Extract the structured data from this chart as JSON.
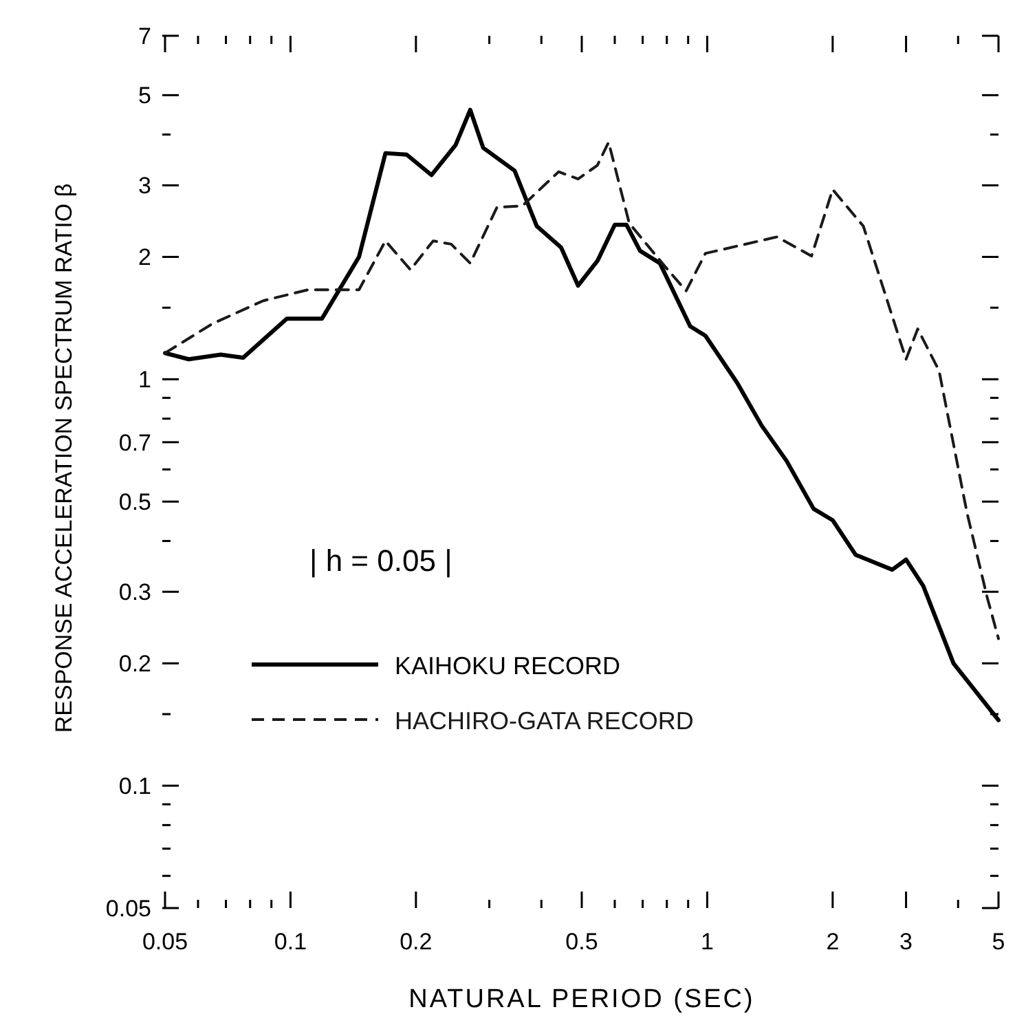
{
  "chart_data": {
    "type": "line",
    "xlabel": "NATURAL PERIOD (SEC)",
    "ylabel": "RESPONSE ACCELERATION SPECTRUM RATIO β",
    "log": "xy",
    "grid": false,
    "legend": "bottom left",
    "annotations": [
      "| h = 0.05 |"
    ],
    "xlim": [
      0.05,
      5
    ],
    "ylim": [
      0.05,
      7
    ],
    "xticks": [
      0.05,
      {
        "value": 0.06,
        "label": null
      },
      {
        "value": 0.07,
        "label": null
      },
      {
        "value": 0.08,
        "label": null
      },
      {
        "value": 0.09,
        "label": null
      },
      0.1,
      0.2,
      {
        "value": 0.3,
        "label": null
      },
      {
        "value": 0.4,
        "label": null
      },
      0.5,
      {
        "value": 0.6,
        "label": null
      },
      {
        "value": 0.7,
        "label": null
      },
      {
        "value": 0.8,
        "label": null
      },
      {
        "value": 0.9,
        "label": null
      },
      1,
      2,
      3,
      {
        "value": 4,
        "label": null
      },
      5
    ],
    "yticks": [
      0.05,
      {
        "value": 0.06,
        "label": null
      },
      {
        "value": 0.07,
        "label": null
      },
      {
        "value": 0.08,
        "label": null
      },
      {
        "value": 0.09,
        "label": null
      },
      0.1,
      {
        "value": 0.15,
        "label": null
      },
      0.2,
      0.3,
      {
        "value": 0.4,
        "label": null
      },
      0.5,
      {
        "value": 0.6,
        "label": null
      },
      0.7,
      {
        "value": 0.8,
        "label": null
      },
      {
        "value": 0.9,
        "label": null
      },
      1,
      {
        "value": 1.5,
        "label": null
      },
      2,
      3,
      {
        "value": 4,
        "label": null
      },
      5,
      7
    ],
    "series": [
      {
        "name": "KAIHOKU RECORD",
        "color": "#000000",
        "line_style": "solid",
        "x": [
          0.05,
          0.057,
          0.068,
          0.077,
          0.098,
          0.119,
          0.146,
          0.169,
          0.19,
          0.218,
          0.249,
          0.27,
          0.29,
          0.345,
          0.39,
          0.446,
          0.49,
          0.546,
          0.6,
          0.64,
          0.69,
          0.77,
          0.91,
          0.99,
          1.18,
          1.35,
          1.55,
          1.8,
          2.0,
          2.27,
          2.78,
          3.0,
          3.3,
          3.9,
          5.0
        ],
        "values": [
          1.16,
          1.12,
          1.15,
          1.13,
          1.41,
          1.41,
          2.0,
          3.6,
          3.57,
          3.18,
          3.77,
          4.6,
          3.71,
          3.26,
          2.38,
          2.11,
          1.7,
          1.96,
          2.4,
          2.4,
          2.07,
          1.93,
          1.35,
          1.28,
          0.98,
          0.77,
          0.63,
          0.48,
          0.45,
          0.37,
          0.34,
          0.36,
          0.31,
          0.2,
          0.145
        ]
      },
      {
        "name": "HACHIRO-GATA RECORD",
        "color": "#1a1a1a",
        "line_style": "dashed",
        "x": [
          0.05,
          0.065,
          0.086,
          0.11,
          0.146,
          0.169,
          0.194,
          0.22,
          0.243,
          0.27,
          0.313,
          0.36,
          0.44,
          0.49,
          0.545,
          0.58,
          0.65,
          0.79,
          0.89,
          0.99,
          1.47,
          1.78,
          2.0,
          2.37,
          3.0,
          3.2,
          3.6,
          4.2,
          4.7,
          5.0
        ],
        "values": [
          1.16,
          1.37,
          1.56,
          1.66,
          1.66,
          2.19,
          1.86,
          2.19,
          2.15,
          1.93,
          2.65,
          2.67,
          3.24,
          3.11,
          3.36,
          3.83,
          2.42,
          1.9,
          1.65,
          2.04,
          2.24,
          2.01,
          2.93,
          2.38,
          1.12,
          1.33,
          1.05,
          0.47,
          0.29,
          0.23
        ]
      }
    ]
  }
}
